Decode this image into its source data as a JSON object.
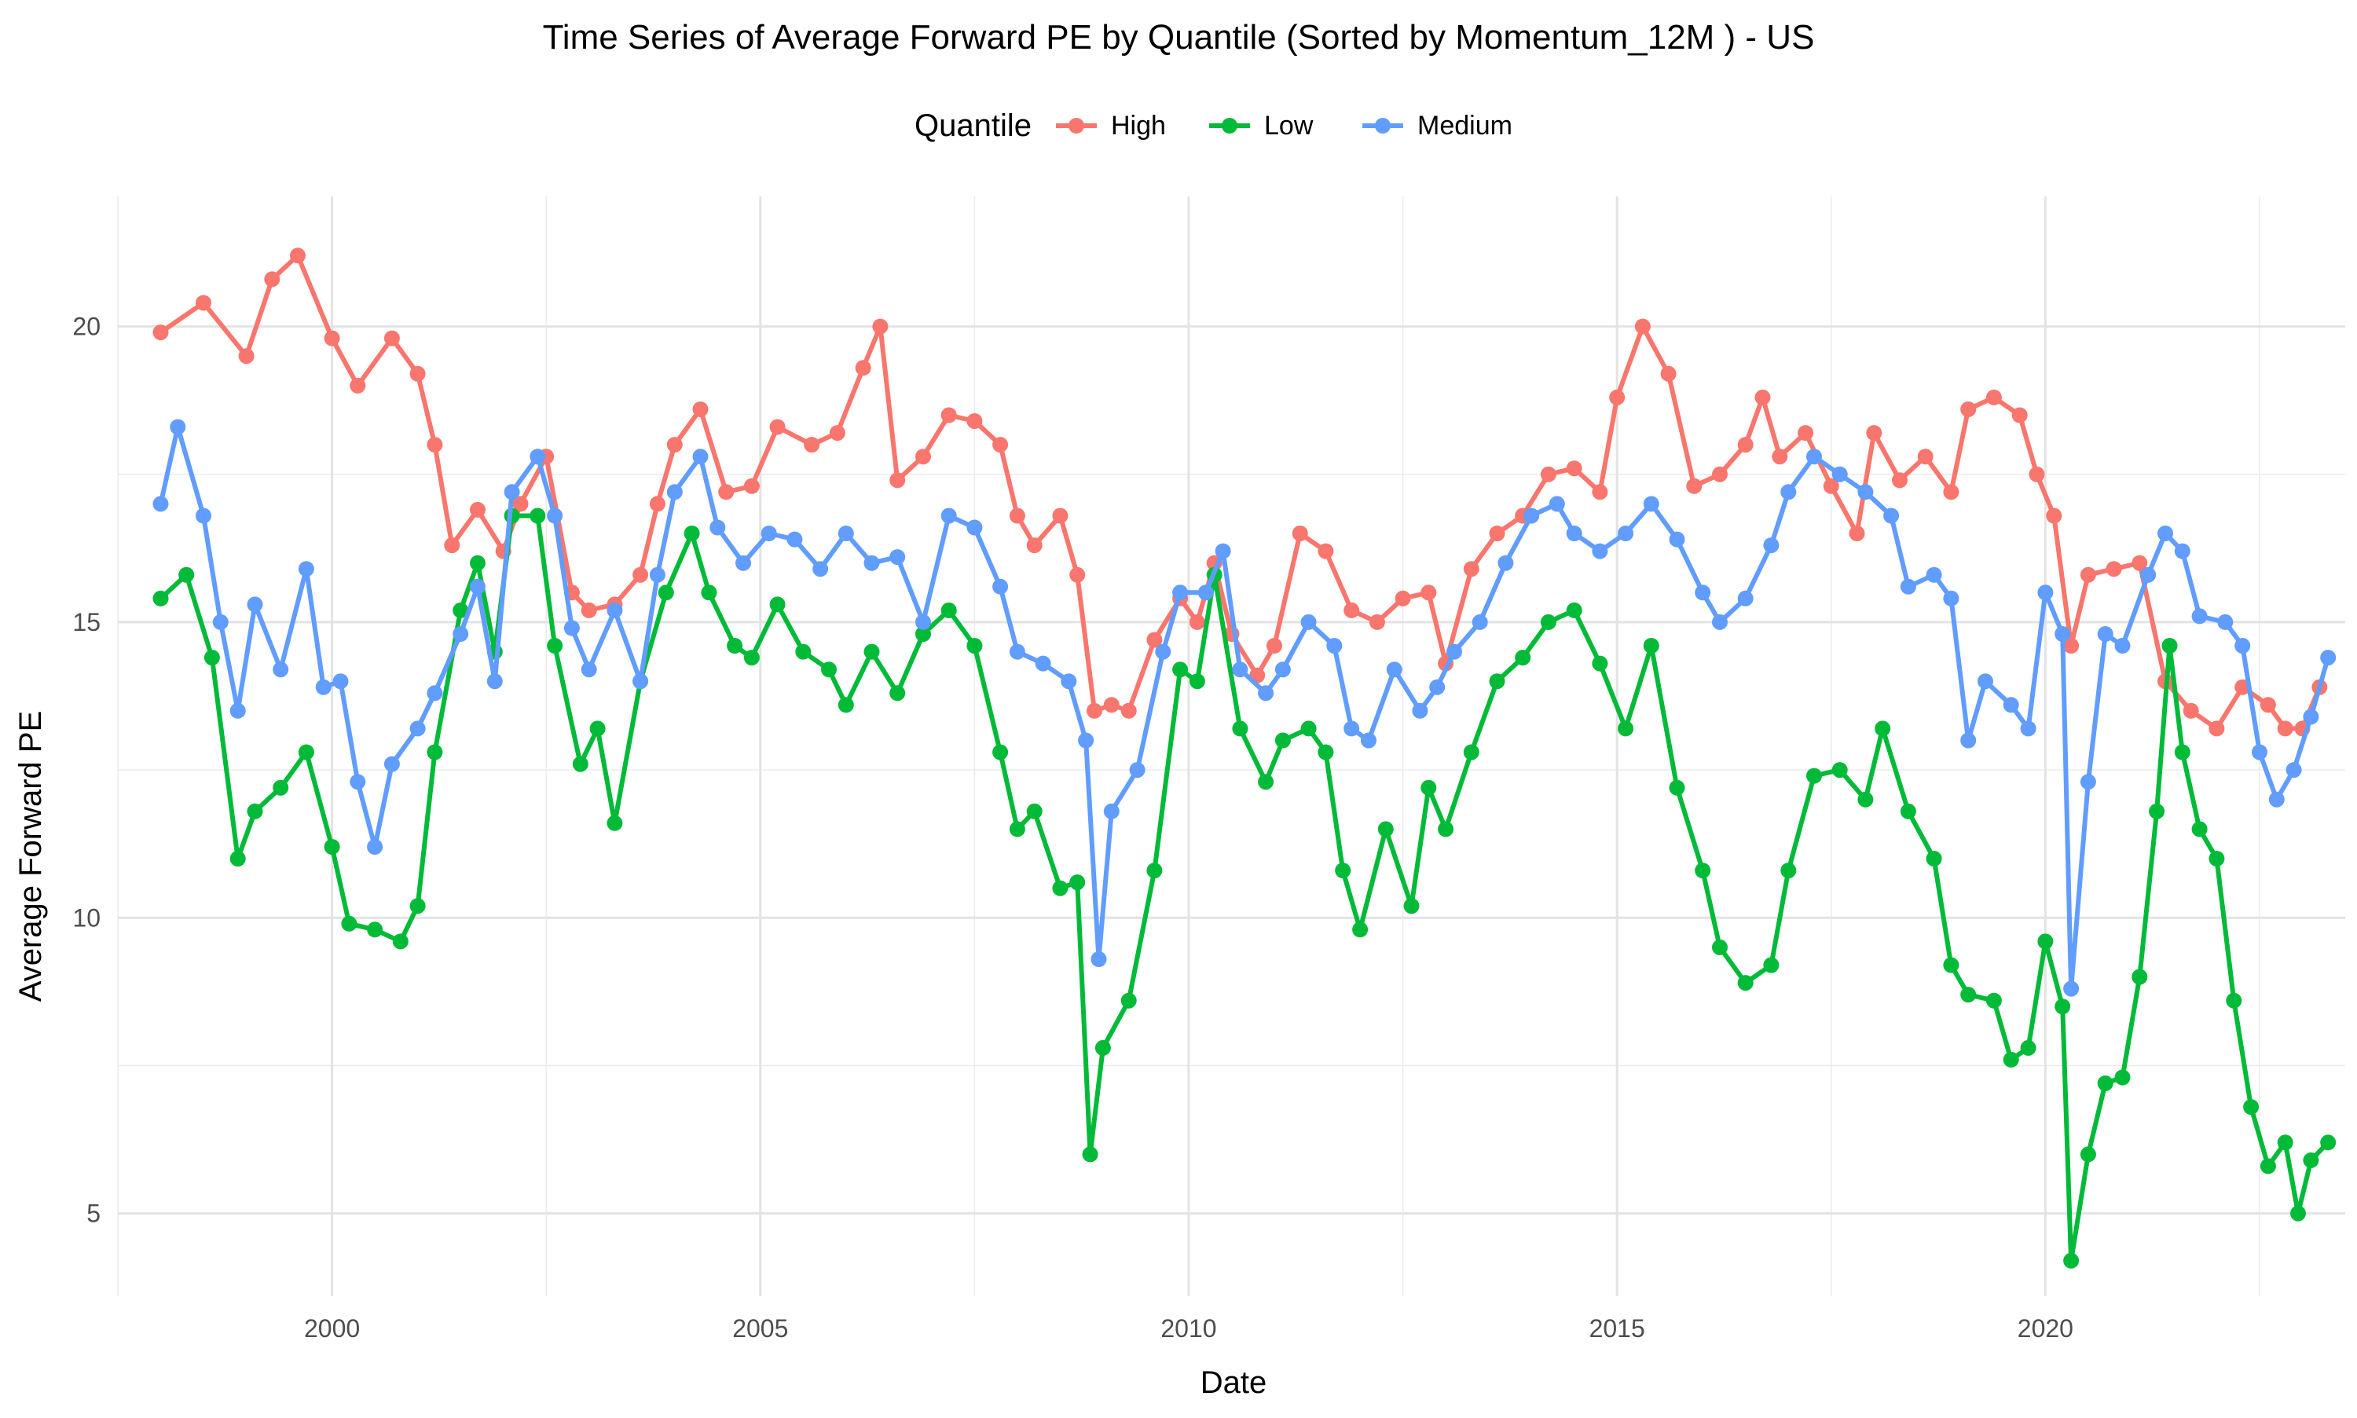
{
  "chart_data": {
    "type": "line",
    "title": "Time Series of Average Forward PE by Quantile (Sorted by Momentum_12M ) - US",
    "xlabel": "Date",
    "ylabel": "Average Forward PE",
    "legend": {
      "title": "Quantile",
      "position": "top"
    },
    "xlim": [
      1997.5,
      2023.5
    ],
    "ylim": [
      3.6,
      22.2
    ],
    "x_ticks": [
      2000,
      2005,
      2010,
      2015,
      2020
    ],
    "x_tick_labels": [
      "2000",
      "2005",
      "2010",
      "2015",
      "2020"
    ],
    "y_ticks": [
      5,
      10,
      15,
      20
    ],
    "y_tick_labels": [
      "5",
      "10",
      "15",
      "20"
    ],
    "grid": true,
    "series": [
      {
        "name": "High",
        "color": "#F8766D",
        "points": [
          [
            1998.0,
            19.9
          ],
          [
            1998.5,
            20.4
          ],
          [
            1999.0,
            19.5
          ],
          [
            1999.3,
            20.8
          ],
          [
            1999.6,
            21.2
          ],
          [
            2000.0,
            19.8
          ],
          [
            2000.3,
            19.0
          ],
          [
            2000.7,
            19.8
          ],
          [
            2001.0,
            19.2
          ],
          [
            2001.2,
            18.0
          ],
          [
            2001.4,
            16.3
          ],
          [
            2001.7,
            16.9
          ],
          [
            2002.0,
            16.2
          ],
          [
            2002.2,
            17.0
          ],
          [
            2002.5,
            17.8
          ],
          [
            2002.8,
            15.5
          ],
          [
            2003.0,
            15.2
          ],
          [
            2003.3,
            15.3
          ],
          [
            2003.6,
            15.8
          ],
          [
            2003.8,
            17.0
          ],
          [
            2004.0,
            18.0
          ],
          [
            2004.3,
            18.6
          ],
          [
            2004.6,
            17.2
          ],
          [
            2004.9,
            17.3
          ],
          [
            2005.2,
            18.3
          ],
          [
            2005.6,
            18.0
          ],
          [
            2005.9,
            18.2
          ],
          [
            2006.2,
            19.3
          ],
          [
            2006.4,
            20.0
          ],
          [
            2006.6,
            17.4
          ],
          [
            2006.9,
            17.8
          ],
          [
            2007.2,
            18.5
          ],
          [
            2007.5,
            18.4
          ],
          [
            2007.8,
            18.0
          ],
          [
            2008.0,
            16.8
          ],
          [
            2008.2,
            16.3
          ],
          [
            2008.5,
            16.8
          ],
          [
            2008.7,
            15.8
          ],
          [
            2008.9,
            13.5
          ],
          [
            2009.1,
            13.6
          ],
          [
            2009.3,
            13.5
          ],
          [
            2009.6,
            14.7
          ],
          [
            2009.9,
            15.4
          ],
          [
            2010.1,
            15.0
          ],
          [
            2010.3,
            16.0
          ],
          [
            2010.5,
            14.8
          ],
          [
            2010.8,
            14.1
          ],
          [
            2011.0,
            14.6
          ],
          [
            2011.3,
            16.5
          ],
          [
            2011.6,
            16.2
          ],
          [
            2011.9,
            15.2
          ],
          [
            2012.2,
            15.0
          ],
          [
            2012.5,
            15.4
          ],
          [
            2012.8,
            15.5
          ],
          [
            2013.0,
            14.3
          ],
          [
            2013.3,
            15.9
          ],
          [
            2013.6,
            16.5
          ],
          [
            2013.9,
            16.8
          ],
          [
            2014.2,
            17.5
          ],
          [
            2014.5,
            17.6
          ],
          [
            2014.8,
            17.2
          ],
          [
            2015.0,
            18.8
          ],
          [
            2015.3,
            20.0
          ],
          [
            2015.6,
            19.2
          ],
          [
            2015.9,
            17.3
          ],
          [
            2016.2,
            17.5
          ],
          [
            2016.5,
            18.0
          ],
          [
            2016.7,
            18.8
          ],
          [
            2016.9,
            17.8
          ],
          [
            2017.2,
            18.2
          ],
          [
            2017.5,
            17.3
          ],
          [
            2017.8,
            16.5
          ],
          [
            2018.0,
            18.2
          ],
          [
            2018.3,
            17.4
          ],
          [
            2018.6,
            17.8
          ],
          [
            2018.9,
            17.2
          ],
          [
            2019.1,
            18.6
          ],
          [
            2019.4,
            18.8
          ],
          [
            2019.7,
            18.5
          ],
          [
            2019.9,
            17.5
          ],
          [
            2020.1,
            16.8
          ],
          [
            2020.3,
            14.6
          ],
          [
            2020.5,
            15.8
          ],
          [
            2020.8,
            15.9
          ],
          [
            2021.1,
            16.0
          ],
          [
            2021.4,
            14.0
          ],
          [
            2021.7,
            13.5
          ],
          [
            2022.0,
            13.2
          ],
          [
            2022.3,
            13.9
          ],
          [
            2022.6,
            13.6
          ],
          [
            2022.8,
            13.2
          ],
          [
            2023.0,
            13.2
          ],
          [
            2023.2,
            13.9
          ]
        ]
      },
      {
        "name": "Low",
        "color": "#00BA38",
        "points": [
          [
            1998.0,
            15.4
          ],
          [
            1998.3,
            15.8
          ],
          [
            1998.6,
            14.4
          ],
          [
            1998.9,
            11.0
          ],
          [
            1999.1,
            11.8
          ],
          [
            1999.4,
            12.2
          ],
          [
            1999.7,
            12.8
          ],
          [
            2000.0,
            11.2
          ],
          [
            2000.2,
            9.9
          ],
          [
            2000.5,
            9.8
          ],
          [
            2000.8,
            9.6
          ],
          [
            2001.0,
            10.2
          ],
          [
            2001.2,
            12.8
          ],
          [
            2001.5,
            15.2
          ],
          [
            2001.7,
            16.0
          ],
          [
            2001.9,
            14.5
          ],
          [
            2002.1,
            16.8
          ],
          [
            2002.4,
            16.8
          ],
          [
            2002.6,
            14.6
          ],
          [
            2002.9,
            12.6
          ],
          [
            2003.1,
            13.2
          ],
          [
            2003.3,
            11.6
          ],
          [
            2003.6,
            14.0
          ],
          [
            2003.9,
            15.5
          ],
          [
            2004.2,
            16.5
          ],
          [
            2004.4,
            15.5
          ],
          [
            2004.7,
            14.6
          ],
          [
            2004.9,
            14.4
          ],
          [
            2005.2,
            15.3
          ],
          [
            2005.5,
            14.5
          ],
          [
            2005.8,
            14.2
          ],
          [
            2006.0,
            13.6
          ],
          [
            2006.3,
            14.5
          ],
          [
            2006.6,
            13.8
          ],
          [
            2006.9,
            14.8
          ],
          [
            2007.2,
            15.2
          ],
          [
            2007.5,
            14.6
          ],
          [
            2007.8,
            12.8
          ],
          [
            2008.0,
            11.5
          ],
          [
            2008.2,
            11.8
          ],
          [
            2008.5,
            10.5
          ],
          [
            2008.7,
            10.6
          ],
          [
            2008.85,
            6.0
          ],
          [
            2009.0,
            7.8
          ],
          [
            2009.3,
            8.6
          ],
          [
            2009.6,
            10.8
          ],
          [
            2009.9,
            14.2
          ],
          [
            2010.1,
            14.0
          ],
          [
            2010.3,
            15.8
          ],
          [
            2010.6,
            13.2
          ],
          [
            2010.9,
            12.3
          ],
          [
            2011.1,
            13.0
          ],
          [
            2011.4,
            13.2
          ],
          [
            2011.6,
            12.8
          ],
          [
            2011.8,
            10.8
          ],
          [
            2012.0,
            9.8
          ],
          [
            2012.3,
            11.5
          ],
          [
            2012.6,
            10.2
          ],
          [
            2012.8,
            12.2
          ],
          [
            2013.0,
            11.5
          ],
          [
            2013.3,
            12.8
          ],
          [
            2013.6,
            14.0
          ],
          [
            2013.9,
            14.4
          ],
          [
            2014.2,
            15.0
          ],
          [
            2014.5,
            15.2
          ],
          [
            2014.8,
            14.3
          ],
          [
            2015.1,
            13.2
          ],
          [
            2015.4,
            14.6
          ],
          [
            2015.7,
            12.2
          ],
          [
            2016.0,
            10.8
          ],
          [
            2016.2,
            9.5
          ],
          [
            2016.5,
            8.9
          ],
          [
            2016.8,
            9.2
          ],
          [
            2017.0,
            10.8
          ],
          [
            2017.3,
            12.4
          ],
          [
            2017.6,
            12.5
          ],
          [
            2017.9,
            12.0
          ],
          [
            2018.1,
            13.2
          ],
          [
            2018.4,
            11.8
          ],
          [
            2018.7,
            11.0
          ],
          [
            2018.9,
            9.2
          ],
          [
            2019.1,
            8.7
          ],
          [
            2019.4,
            8.6
          ],
          [
            2019.6,
            7.6
          ],
          [
            2019.8,
            7.8
          ],
          [
            2020.0,
            9.6
          ],
          [
            2020.2,
            8.5
          ],
          [
            2020.3,
            4.2
          ],
          [
            2020.5,
            6.0
          ],
          [
            2020.7,
            7.2
          ],
          [
            2020.9,
            7.3
          ],
          [
            2021.1,
            9.0
          ],
          [
            2021.3,
            11.8
          ],
          [
            2021.45,
            14.6
          ],
          [
            2021.6,
            12.8
          ],
          [
            2021.8,
            11.5
          ],
          [
            2022.0,
            11.0
          ],
          [
            2022.2,
            8.6
          ],
          [
            2022.4,
            6.8
          ],
          [
            2022.6,
            5.8
          ],
          [
            2022.8,
            6.2
          ],
          [
            2022.95,
            5.0
          ],
          [
            2023.1,
            5.9
          ],
          [
            2023.3,
            6.2
          ]
        ]
      },
      {
        "name": "Medium",
        "color": "#619CFF",
        "points": [
          [
            1998.0,
            17.0
          ],
          [
            1998.2,
            18.3
          ],
          [
            1998.5,
            16.8
          ],
          [
            1998.7,
            15.0
          ],
          [
            1998.9,
            13.5
          ],
          [
            1999.1,
            15.3
          ],
          [
            1999.4,
            14.2
          ],
          [
            1999.7,
            15.9
          ],
          [
            1999.9,
            13.9
          ],
          [
            2000.1,
            14.0
          ],
          [
            2000.3,
            12.3
          ],
          [
            2000.5,
            11.2
          ],
          [
            2000.7,
            12.6
          ],
          [
            2001.0,
            13.2
          ],
          [
            2001.2,
            13.8
          ],
          [
            2001.5,
            14.8
          ],
          [
            2001.7,
            15.6
          ],
          [
            2001.9,
            14.0
          ],
          [
            2002.1,
            17.2
          ],
          [
            2002.4,
            17.8
          ],
          [
            2002.6,
            16.8
          ],
          [
            2002.8,
            14.9
          ],
          [
            2003.0,
            14.2
          ],
          [
            2003.3,
            15.2
          ],
          [
            2003.6,
            14.0
          ],
          [
            2003.8,
            15.8
          ],
          [
            2004.0,
            17.2
          ],
          [
            2004.3,
            17.8
          ],
          [
            2004.5,
            16.6
          ],
          [
            2004.8,
            16.0
          ],
          [
            2005.1,
            16.5
          ],
          [
            2005.4,
            16.4
          ],
          [
            2005.7,
            15.9
          ],
          [
            2006.0,
            16.5
          ],
          [
            2006.3,
            16.0
          ],
          [
            2006.6,
            16.1
          ],
          [
            2006.9,
            15.0
          ],
          [
            2007.2,
            16.8
          ],
          [
            2007.5,
            16.6
          ],
          [
            2007.8,
            15.6
          ],
          [
            2008.0,
            14.5
          ],
          [
            2008.3,
            14.3
          ],
          [
            2008.6,
            14.0
          ],
          [
            2008.8,
            13.0
          ],
          [
            2008.95,
            9.3
          ],
          [
            2009.1,
            11.8
          ],
          [
            2009.4,
            12.5
          ],
          [
            2009.7,
            14.5
          ],
          [
            2009.9,
            15.5
          ],
          [
            2010.2,
            15.5
          ],
          [
            2010.4,
            16.2
          ],
          [
            2010.6,
            14.2
          ],
          [
            2010.9,
            13.8
          ],
          [
            2011.1,
            14.2
          ],
          [
            2011.4,
            15.0
          ],
          [
            2011.7,
            14.6
          ],
          [
            2011.9,
            13.2
          ],
          [
            2012.1,
            13.0
          ],
          [
            2012.4,
            14.2
          ],
          [
            2012.7,
            13.5
          ],
          [
            2012.9,
            13.9
          ],
          [
            2013.1,
            14.5
          ],
          [
            2013.4,
            15.0
          ],
          [
            2013.7,
            16.0
          ],
          [
            2014.0,
            16.8
          ],
          [
            2014.3,
            17.0
          ],
          [
            2014.5,
            16.5
          ],
          [
            2014.8,
            16.2
          ],
          [
            2015.1,
            16.5
          ],
          [
            2015.4,
            17.0
          ],
          [
            2015.7,
            16.4
          ],
          [
            2016.0,
            15.5
          ],
          [
            2016.2,
            15.0
          ],
          [
            2016.5,
            15.4
          ],
          [
            2016.8,
            16.3
          ],
          [
            2017.0,
            17.2
          ],
          [
            2017.3,
            17.8
          ],
          [
            2017.6,
            17.5
          ],
          [
            2017.9,
            17.2
          ],
          [
            2018.2,
            16.8
          ],
          [
            2018.4,
            15.6
          ],
          [
            2018.7,
            15.8
          ],
          [
            2018.9,
            15.4
          ],
          [
            2019.1,
            13.0
          ],
          [
            2019.3,
            14.0
          ],
          [
            2019.6,
            13.6
          ],
          [
            2019.8,
            13.2
          ],
          [
            2020.0,
            15.5
          ],
          [
            2020.2,
            14.8
          ],
          [
            2020.3,
            8.8
          ],
          [
            2020.5,
            12.3
          ],
          [
            2020.7,
            14.8
          ],
          [
            2020.9,
            14.6
          ],
          [
            2021.2,
            15.8
          ],
          [
            2021.4,
            16.5
          ],
          [
            2021.6,
            16.2
          ],
          [
            2021.8,
            15.1
          ],
          [
            2022.1,
            15.0
          ],
          [
            2022.3,
            14.6
          ],
          [
            2022.5,
            12.8
          ],
          [
            2022.7,
            12.0
          ],
          [
            2022.9,
            12.5
          ],
          [
            2023.1,
            13.4
          ],
          [
            2023.3,
            14.4
          ]
        ]
      }
    ]
  }
}
